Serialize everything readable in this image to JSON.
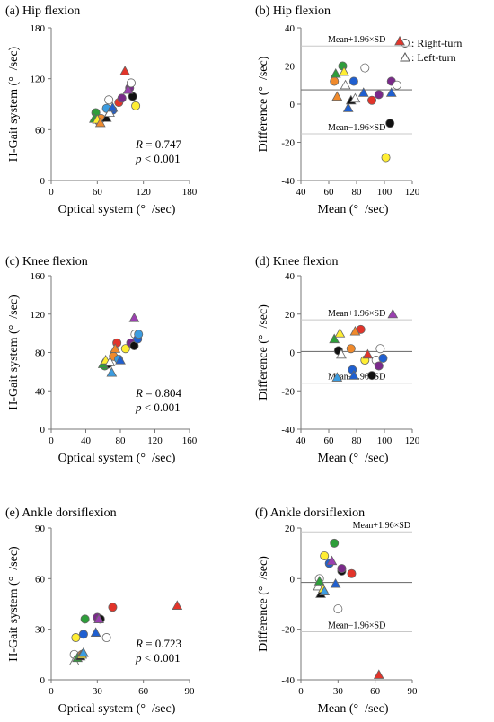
{
  "legend": {
    "circle_label": ": Right-turn",
    "triangle_label": ": Left-turn"
  },
  "colors": {
    "green": "#2e9e3a",
    "orange": "#f08a2c",
    "white": "#ffffff",
    "blue": "#1f5fd0",
    "yellow": "#ffee33",
    "black": "#111111",
    "purple": "#7a2a8a",
    "red": "#e2342a",
    "lightblue": "#3b9ce0",
    "violet": "#9b3fb0"
  },
  "chart_data": [
    {
      "id": "a",
      "type": "scatter",
      "title": "(a) Hip flexion",
      "xlabel": "Optical system (° /sec)",
      "ylabel": "H-Gait system (° /sec)",
      "xlim": [
        0,
        180
      ],
      "ylim": [
        0,
        180
      ],
      "xticks": [
        0,
        60,
        120,
        180
      ],
      "yticks": [
        0,
        60,
        120,
        180
      ],
      "stats": {
        "r_label": "R",
        "r_value": "= 0.747",
        "p_label": "p",
        "p_value": "< 0.001"
      },
      "points": [
        {
          "x": 58,
          "y": 80,
          "shape": "circle",
          "color": "green"
        },
        {
          "x": 62,
          "y": 70,
          "shape": "circle",
          "color": "orange"
        },
        {
          "x": 65,
          "y": 73,
          "shape": "circle",
          "color": "orange"
        },
        {
          "x": 75,
          "y": 95,
          "shape": "circle",
          "color": "white"
        },
        {
          "x": 72,
          "y": 85,
          "shape": "circle",
          "color": "lightblue"
        },
        {
          "x": 80,
          "y": 83,
          "shape": "circle",
          "color": "blue"
        },
        {
          "x": 88,
          "y": 92,
          "shape": "circle",
          "color": "red"
        },
        {
          "x": 92,
          "y": 97,
          "shape": "circle",
          "color": "purple"
        },
        {
          "x": 102,
          "y": 109,
          "shape": "circle",
          "color": "purple"
        },
        {
          "x": 104,
          "y": 115,
          "shape": "circle",
          "color": "white"
        },
        {
          "x": 106,
          "y": 99,
          "shape": "circle",
          "color": "black"
        },
        {
          "x": 110,
          "y": 88,
          "shape": "circle",
          "color": "yellow"
        },
        {
          "x": 56,
          "y": 73,
          "shape": "triangle",
          "color": "green"
        },
        {
          "x": 60,
          "y": 72,
          "shape": "triangle",
          "color": "yellow"
        },
        {
          "x": 64,
          "y": 68,
          "shape": "triangle",
          "color": "orange"
        },
        {
          "x": 72,
          "y": 74,
          "shape": "triangle",
          "color": "black"
        },
        {
          "x": 76,
          "y": 80,
          "shape": "triangle",
          "color": "white"
        },
        {
          "x": 80,
          "y": 86,
          "shape": "triangle",
          "color": "blue"
        },
        {
          "x": 96,
          "y": 129,
          "shape": "triangle",
          "color": "red"
        },
        {
          "x": 100,
          "y": 107,
          "shape": "triangle",
          "color": "violet"
        }
      ]
    },
    {
      "id": "b",
      "type": "scatter",
      "title": "(b) Hip flexion",
      "xlabel": "Mean (° /sec)",
      "ylabel": "Difference (° /sec)",
      "xlim": [
        40,
        120
      ],
      "ylim": [
        -40,
        40
      ],
      "xticks": [
        40,
        60,
        80,
        100,
        120
      ],
      "yticks": [
        -40,
        -20,
        0,
        20,
        40
      ],
      "mean_line": 7.5,
      "upper_line": 30.5,
      "lower_line": -15.5,
      "upper_label": "Mean+1.96×SD",
      "lower_label": "Mean−1.96×SD",
      "points": [
        {
          "x": 64,
          "y": 12,
          "shape": "circle",
          "color": "orange"
        },
        {
          "x": 70,
          "y": 20,
          "shape": "circle",
          "color": "green"
        },
        {
          "x": 78,
          "y": 12,
          "shape": "circle",
          "color": "blue"
        },
        {
          "x": 86,
          "y": 19,
          "shape": "circle",
          "color": "white"
        },
        {
          "x": 91,
          "y": 2,
          "shape": "circle",
          "color": "red"
        },
        {
          "x": 96,
          "y": 5,
          "shape": "circle",
          "color": "purple"
        },
        {
          "x": 105,
          "y": 12,
          "shape": "circle",
          "color": "purple"
        },
        {
          "x": 109,
          "y": 10,
          "shape": "circle",
          "color": "white"
        },
        {
          "x": 104,
          "y": -10,
          "shape": "circle",
          "color": "black"
        },
        {
          "x": 101,
          "y": -28,
          "shape": "circle",
          "color": "yellow"
        },
        {
          "x": 65,
          "y": 16,
          "shape": "triangle",
          "color": "green"
        },
        {
          "x": 66,
          "y": 4,
          "shape": "triangle",
          "color": "orange"
        },
        {
          "x": 71,
          "y": 17,
          "shape": "triangle",
          "color": "yellow"
        },
        {
          "x": 72,
          "y": 10,
          "shape": "triangle",
          "color": "white"
        },
        {
          "x": 74,
          "y": -2,
          "shape": "triangle",
          "color": "blue"
        },
        {
          "x": 76,
          "y": 2,
          "shape": "triangle",
          "color": "black"
        },
        {
          "x": 79,
          "y": 3,
          "shape": "triangle",
          "color": "white"
        },
        {
          "x": 85,
          "y": 6,
          "shape": "triangle",
          "color": "blue"
        },
        {
          "x": 105,
          "y": 6,
          "shape": "triangle",
          "color": "blue"
        },
        {
          "x": 111,
          "y": 33,
          "shape": "triangle",
          "color": "red"
        }
      ]
    },
    {
      "id": "c",
      "type": "scatter",
      "title": "(c) Knee flexion",
      "xlabel": "Optical system (° /sec)",
      "ylabel": "H-Gait system (° /sec)",
      "xlim": [
        0,
        160
      ],
      "ylim": [
        0,
        160
      ],
      "xticks": [
        0,
        40,
        80,
        120,
        160
      ],
      "yticks": [
        0,
        40,
        80,
        120,
        160
      ],
      "stats": {
        "r_label": "R",
        "r_value": "= 0.804",
        "p_label": "p",
        "p_value": "< 0.001"
      },
      "points": [
        {
          "x": 62,
          "y": 66,
          "shape": "circle",
          "color": "green"
        },
        {
          "x": 66,
          "y": 68,
          "shape": "circle",
          "color": "black"
        },
        {
          "x": 72,
          "y": 76,
          "shape": "circle",
          "color": "orange"
        },
        {
          "x": 76,
          "y": 90,
          "shape": "circle",
          "color": "red"
        },
        {
          "x": 78,
          "y": 73,
          "shape": "circle",
          "color": "lightblue"
        },
        {
          "x": 86,
          "y": 84,
          "shape": "circle",
          "color": "yellow"
        },
        {
          "x": 92,
          "y": 90,
          "shape": "circle",
          "color": "purple"
        },
        {
          "x": 96,
          "y": 87,
          "shape": "circle",
          "color": "black"
        },
        {
          "x": 97,
          "y": 99,
          "shape": "circle",
          "color": "white"
        },
        {
          "x": 100,
          "y": 94,
          "shape": "circle",
          "color": "blue"
        },
        {
          "x": 101,
          "y": 99,
          "shape": "circle",
          "color": "lightblue"
        },
        {
          "x": 60,
          "y": 68,
          "shape": "triangle",
          "color": "green"
        },
        {
          "x": 63,
          "y": 72,
          "shape": "triangle",
          "color": "yellow"
        },
        {
          "x": 68,
          "y": 70,
          "shape": "triangle",
          "color": "white"
        },
        {
          "x": 70,
          "y": 59,
          "shape": "triangle",
          "color": "lightblue"
        },
        {
          "x": 74,
          "y": 84,
          "shape": "triangle",
          "color": "orange"
        },
        {
          "x": 80,
          "y": 72,
          "shape": "triangle",
          "color": "blue"
        },
        {
          "x": 96,
          "y": 116,
          "shape": "triangle",
          "color": "violet"
        }
      ]
    },
    {
      "id": "d",
      "type": "scatter",
      "title": "(d) Knee flexion",
      "xlabel": "Mean (° /sec)",
      "ylabel": "Difference (° /sec)",
      "xlim": [
        40,
        120
      ],
      "ylim": [
        -40,
        40
      ],
      "xticks": [
        40,
        60,
        80,
        100,
        120
      ],
      "yticks": [
        -40,
        -20,
        0,
        20,
        40
      ],
      "mean_line": 0.5,
      "upper_line": 17,
      "lower_line": -16,
      "upper_label": "Mean+1.96×SD",
      "lower_label": "Mean−1.96×SD",
      "points": [
        {
          "x": 67,
          "y": 1,
          "shape": "circle",
          "color": "black"
        },
        {
          "x": 76,
          "y": 2,
          "shape": "circle",
          "color": "orange"
        },
        {
          "x": 77,
          "y": -9,
          "shape": "circle",
          "color": "blue"
        },
        {
          "x": 83,
          "y": 12,
          "shape": "circle",
          "color": "red"
        },
        {
          "x": 86,
          "y": -4,
          "shape": "circle",
          "color": "yellow"
        },
        {
          "x": 91,
          "y": -12,
          "shape": "circle",
          "color": "black"
        },
        {
          "x": 94,
          "y": -4,
          "shape": "circle",
          "color": "white"
        },
        {
          "x": 96,
          "y": -7,
          "shape": "circle",
          "color": "purple"
        },
        {
          "x": 97,
          "y": 2,
          "shape": "circle",
          "color": "white"
        },
        {
          "x": 99,
          "y": -3,
          "shape": "circle",
          "color": "blue"
        },
        {
          "x": 64,
          "y": 7,
          "shape": "triangle",
          "color": "green"
        },
        {
          "x": 66,
          "y": -13,
          "shape": "triangle",
          "color": "lightblue"
        },
        {
          "x": 68,
          "y": 10,
          "shape": "triangle",
          "color": "yellow"
        },
        {
          "x": 69,
          "y": -1,
          "shape": "triangle",
          "color": "white"
        },
        {
          "x": 79,
          "y": 11,
          "shape": "triangle",
          "color": "orange"
        },
        {
          "x": 78,
          "y": -12,
          "shape": "triangle",
          "color": "blue"
        },
        {
          "x": 88,
          "y": -1,
          "shape": "triangle",
          "color": "red"
        },
        {
          "x": 106,
          "y": 20,
          "shape": "triangle",
          "color": "violet"
        }
      ]
    },
    {
      "id": "e",
      "type": "scatter",
      "title": "(e) Ankle dorsiflexion",
      "xlabel": "Optical system (° /sec)",
      "ylabel": "H-Gait system (° /sec)",
      "xlim": [
        0,
        90
      ],
      "ylim": [
        0,
        90
      ],
      "xticks": [
        0,
        30,
        60,
        90
      ],
      "yticks": [
        0,
        30,
        60,
        90
      ],
      "stats": {
        "r_label": "R",
        "r_value": "= 0.723",
        "p_label": "p",
        "p_value": "< 0.001"
      },
      "points": [
        {
          "x": 15,
          "y": 15,
          "shape": "circle",
          "color": "white"
        },
        {
          "x": 16,
          "y": 25,
          "shape": "circle",
          "color": "yellow"
        },
        {
          "x": 20,
          "y": 15,
          "shape": "circle",
          "color": "orange"
        },
        {
          "x": 21,
          "y": 27,
          "shape": "circle",
          "color": "blue"
        },
        {
          "x": 22,
          "y": 36,
          "shape": "circle",
          "color": "green"
        },
        {
          "x": 30,
          "y": 37,
          "shape": "circle",
          "color": "purple"
        },
        {
          "x": 32,
          "y": 36,
          "shape": "circle",
          "color": "black"
        },
        {
          "x": 36,
          "y": 25,
          "shape": "circle",
          "color": "white"
        },
        {
          "x": 40,
          "y": 43,
          "shape": "circle",
          "color": "red"
        },
        {
          "x": 15,
          "y": 11,
          "shape": "triangle",
          "color": "white"
        },
        {
          "x": 17,
          "y": 13,
          "shape": "triangle",
          "color": "green"
        },
        {
          "x": 19,
          "y": 14,
          "shape": "triangle",
          "color": "black"
        },
        {
          "x": 20,
          "y": 15,
          "shape": "triangle",
          "color": "yellow"
        },
        {
          "x": 21,
          "y": 16,
          "shape": "triangle",
          "color": "lightblue"
        },
        {
          "x": 29,
          "y": 28,
          "shape": "triangle",
          "color": "blue"
        },
        {
          "x": 31,
          "y": 36,
          "shape": "triangle",
          "color": "violet"
        },
        {
          "x": 82,
          "y": 44,
          "shape": "triangle",
          "color": "red"
        }
      ]
    },
    {
      "id": "f",
      "type": "scatter",
      "title": "(f) Ankle dorsiflexion",
      "xlabel": "Mean (° /sec)",
      "ylabel": "Difference (° /sec)",
      "xlim": [
        0,
        90
      ],
      "ylim": [
        -40,
        20
      ],
      "xticks": [
        0,
        30,
        60,
        90
      ],
      "yticks": [
        -40,
        -20,
        0,
        20
      ],
      "mean_line": -1.5,
      "upper_line": 18.5,
      "lower_line": -21,
      "upper_label": "Mean+1.96×SD",
      "lower_label": "Mean−1.96×SD",
      "points": [
        {
          "x": 15,
          "y": 0,
          "shape": "circle",
          "color": "white"
        },
        {
          "x": 19,
          "y": 9,
          "shape": "circle",
          "color": "yellow"
        },
        {
          "x": 23,
          "y": 6,
          "shape": "circle",
          "color": "blue"
        },
        {
          "x": 27,
          "y": 14,
          "shape": "circle",
          "color": "green"
        },
        {
          "x": 30,
          "y": -12,
          "shape": "circle",
          "color": "white"
        },
        {
          "x": 33,
          "y": 3,
          "shape": "circle",
          "color": "black"
        },
        {
          "x": 33,
          "y": 4,
          "shape": "circle",
          "color": "purple"
        },
        {
          "x": 41,
          "y": 2,
          "shape": "circle",
          "color": "red"
        },
        {
          "x": 14,
          "y": -3,
          "shape": "triangle",
          "color": "white"
        },
        {
          "x": 15,
          "y": -1,
          "shape": "triangle",
          "color": "green"
        },
        {
          "x": 16,
          "y": -6,
          "shape": "triangle",
          "color": "black"
        },
        {
          "x": 18,
          "y": -4,
          "shape": "triangle",
          "color": "yellow"
        },
        {
          "x": 19,
          "y": -5,
          "shape": "triangle",
          "color": "lightblue"
        },
        {
          "x": 25,
          "y": 7,
          "shape": "triangle",
          "color": "violet"
        },
        {
          "x": 28,
          "y": -2,
          "shape": "triangle",
          "color": "blue"
        },
        {
          "x": 63,
          "y": -38,
          "shape": "triangle",
          "color": "red"
        }
      ]
    }
  ]
}
